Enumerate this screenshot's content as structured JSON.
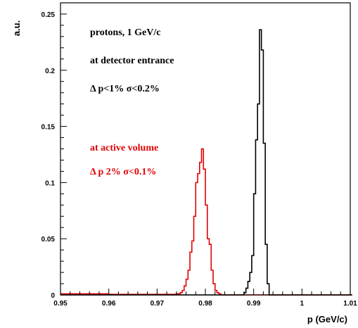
{
  "chart_data": {
    "type": "line",
    "step": true,
    "xlabel": "p (GeV/c)",
    "ylabel": "a.u.",
    "xlim": [
      0.95,
      1.01
    ],
    "ylim": [
      0,
      0.26
    ],
    "xticks": [
      "0.95",
      "0.96",
      "0.97",
      "0.98",
      "0.99",
      "1",
      "1.01"
    ],
    "yticks": [
      "0",
      "0.05",
      "0.1",
      "0.15",
      "0.2",
      "0.25"
    ],
    "grid": false,
    "bin_width": 0.0004,
    "annotations": [
      {
        "text": "protons, 1 GeV/c",
        "color": "#000000"
      },
      {
        "text": "at detector entrance",
        "color": "#000000"
      },
      {
        "text": "Δ p<1% σ<0.2%",
        "color": "#000000"
      },
      {
        "text": "at active volume",
        "color": "#e00000"
      },
      {
        "text": "Δ p 2% σ<0.1%",
        "color": "#e00000"
      }
    ],
    "series": [
      {
        "color": "#e00000",
        "x": [
          0.95,
          0.955,
          0.96,
          0.965,
          0.97,
          0.974,
          0.9748,
          0.9752,
          0.9756,
          0.976,
          0.9764,
          0.9768,
          0.9772,
          0.9776,
          0.978,
          0.9784,
          0.9788,
          0.9792,
          0.9796,
          0.98,
          0.9804,
          0.9808,
          0.9812,
          0.9816,
          0.982,
          0.9824,
          0.9828,
          0.9832,
          1.01
        ],
        "y": [
          0.001,
          0.001,
          0.0005,
          0.0005,
          0.0005,
          0.001,
          0.002,
          0.004,
          0.008,
          0.014,
          0.022,
          0.038,
          0.048,
          0.07,
          0.1,
          0.108,
          0.118,
          0.13,
          0.112,
          0.08,
          0.05,
          0.045,
          0.022,
          0.01,
          0.004,
          0.002,
          0.001,
          0.0,
          0.0
        ]
      },
      {
        "color": "#000000",
        "x": [
          0.95,
          0.988,
          0.9884,
          0.9888,
          0.9892,
          0.9896,
          0.99,
          0.9904,
          0.9908,
          0.9912,
          0.9916,
          0.992,
          0.9924,
          0.9928,
          0.9932,
          1.01
        ],
        "y": [
          0.0,
          0.002,
          0.006,
          0.012,
          0.02,
          0.035,
          0.09,
          0.138,
          0.17,
          0.236,
          0.218,
          0.135,
          0.045,
          0.01,
          0.0,
          0.0
        ]
      }
    ]
  }
}
